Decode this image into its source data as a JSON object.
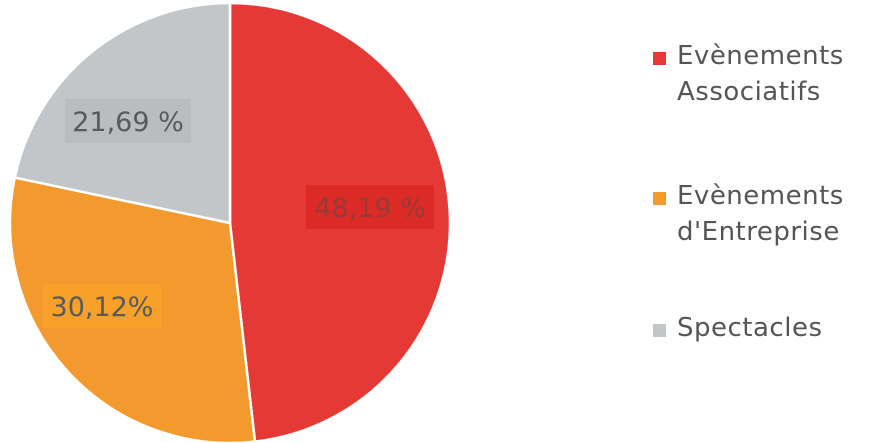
{
  "chart_data": {
    "type": "pie",
    "title": "",
    "categories": [
      "Evènements Associatifs",
      "Evènements d'Entreprise",
      "Spectacles"
    ],
    "values": [
      48.19,
      30.12,
      21.69
    ],
    "data_labels": [
      "48,19 %",
      "30,12%",
      "21,69 %"
    ],
    "colors": [
      "#e53935",
      "#f39a2e",
      "#c3c6c9"
    ],
    "label_colors": [
      "#dc2a26",
      "#f7a02a",
      "#b9bdc0"
    ],
    "legend_placement": "right",
    "legend": [
      {
        "label": "Evènements\nAssociatifs",
        "color": "#e53935"
      },
      {
        "label": "Evènements\nd'Entreprise",
        "color": "#f39a2e"
      },
      {
        "label": "Spectacles",
        "color": "#c3c6c9"
      }
    ]
  }
}
